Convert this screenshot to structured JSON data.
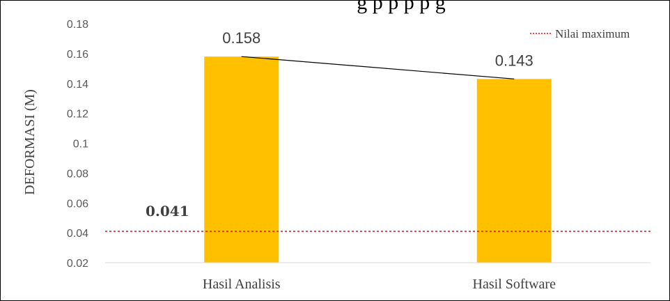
{
  "chart_data": {
    "type": "bar",
    "categories": [
      "Hasil Analisis",
      "Hasil Software"
    ],
    "values": [
      0.158,
      0.143
    ],
    "value_labels": [
      "0.158",
      "0.143"
    ],
    "bar_color": "#FFC000",
    "ylabel": "DEFORMASI  (M)",
    "ylim": [
      0.02,
      0.18
    ],
    "yticks": [
      "0.02",
      "0.04",
      "0.06",
      "0.08",
      "0.1",
      "0.12",
      "0.14",
      "0.16",
      "0.18"
    ],
    "connector_line": true,
    "reference_line": {
      "name": "Nilai maximum",
      "value": 0.041,
      "label": "0.041",
      "color": "#FF0000",
      "style": "dotted"
    },
    "legend_position": "top-right",
    "grid": false,
    "title_partial": "g  p p p p g"
  }
}
